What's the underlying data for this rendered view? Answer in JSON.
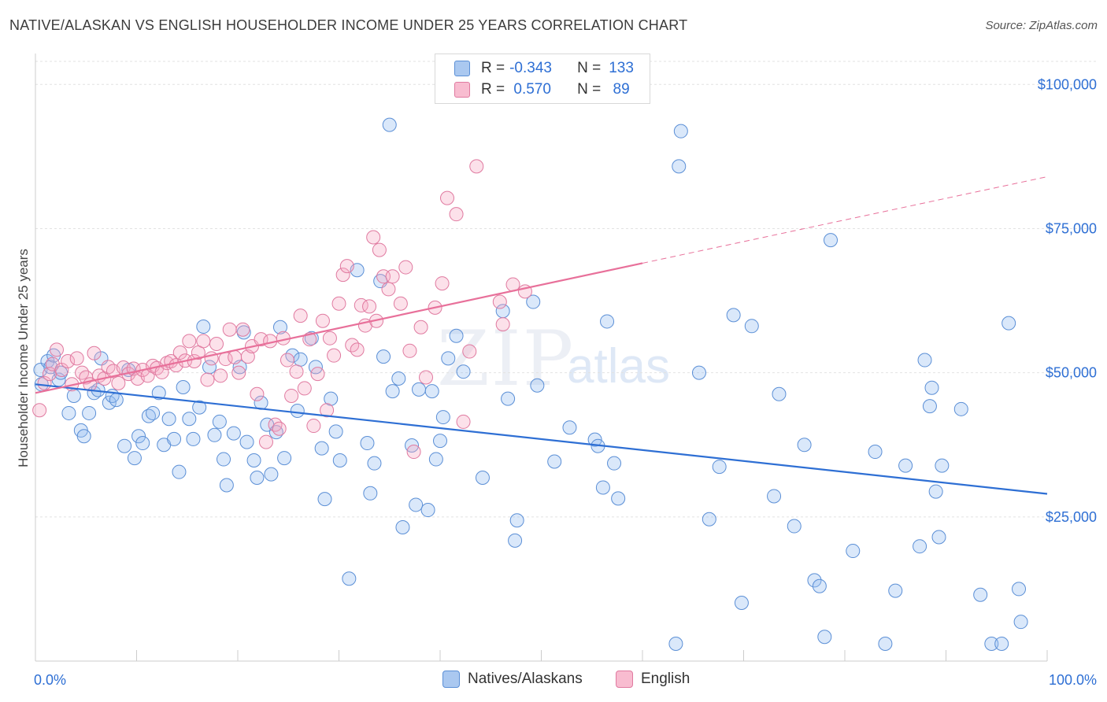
{
  "header": {
    "title": "NATIVE/ALASKAN VS ENGLISH HOUSEHOLDER INCOME UNDER 25 YEARS CORRELATION CHART",
    "source": "Source: ZipAtlas.com"
  },
  "watermark": {
    "zip": "ZIP",
    "atlas": "atlas"
  },
  "legend": {
    "rows": [
      {
        "r_label": "R =",
        "r_value": "-0.343",
        "n_label": "N =",
        "n_value": "133",
        "color": "#aac8f0",
        "border": "#5b8fd6"
      },
      {
        "r_label": "R =",
        "r_value": " 0.570",
        "n_label": "N =",
        "n_value": " 89",
        "color": "#f8bcd0",
        "border": "#e07aa0"
      }
    ]
  },
  "bottom_legend": {
    "series1": "Natives/Alaskans",
    "series2": "English"
  },
  "chart_data": {
    "type": "scatter",
    "title": "NATIVE/ALASKAN VS ENGLISH HOUSEHOLDER INCOME UNDER 25 YEARS CORRELATION CHART",
    "xlabel": "",
    "ylabel": "Householder Income Under 25 years",
    "xlim": [
      0,
      100
    ],
    "ylim": [
      0,
      104000
    ],
    "x_tick_labels": [
      "0.0%",
      "100.0%"
    ],
    "y_ticks": [
      25000,
      50000,
      75000,
      100000
    ],
    "y_tick_labels": [
      "$25,000",
      "$50,000",
      "$75,000",
      "$100,000"
    ],
    "grid": "horizontal dashed",
    "legend_position": "top-center",
    "colors": {
      "blue": "#5b8fd6",
      "blue_fill": "rgba(150,190,240,0.35)",
      "pink": "#e07aa0",
      "pink_fill": "rgba(245,170,195,0.35)",
      "blue_line": "#2e6fd4",
      "pink_line": "#e8709a",
      "axis_label": "#2e6fd4"
    },
    "series": [
      {
        "name": "Natives/Alaskans",
        "r": -0.343,
        "n": 133,
        "trend": {
          "x": [
            0,
            100
          ],
          "y": [
            48000,
            29000
          ]
        },
        "points": [
          [
            0.5,
            50500
          ],
          [
            0.6,
            48000
          ],
          [
            1.2,
            52000
          ],
          [
            1.5,
            51000
          ],
          [
            1.8,
            53000
          ],
          [
            2.3,
            48800
          ],
          [
            2.5,
            50000
          ],
          [
            3.3,
            43000
          ],
          [
            3.8,
            46000
          ],
          [
            4.5,
            40000
          ],
          [
            4.8,
            39000
          ],
          [
            5.3,
            43000
          ],
          [
            5.8,
            46500
          ],
          [
            6.2,
            47000
          ],
          [
            6.5,
            52500
          ],
          [
            7.3,
            44800
          ],
          [
            7.6,
            46000
          ],
          [
            8.0,
            45300
          ],
          [
            8.8,
            37300
          ],
          [
            9.2,
            50500
          ],
          [
            9.8,
            35200
          ],
          [
            10.2,
            39000
          ],
          [
            10.6,
            37800
          ],
          [
            11.2,
            42500
          ],
          [
            11.6,
            43000
          ],
          [
            12.2,
            46500
          ],
          [
            12.7,
            37500
          ],
          [
            13.2,
            42000
          ],
          [
            13.7,
            38500
          ],
          [
            14.2,
            32800
          ],
          [
            14.6,
            47500
          ],
          [
            15.2,
            42000
          ],
          [
            15.6,
            38500
          ],
          [
            16.2,
            44000
          ],
          [
            16.6,
            58000
          ],
          [
            17.2,
            51000
          ],
          [
            17.7,
            39200
          ],
          [
            18.2,
            41500
          ],
          [
            18.6,
            35000
          ],
          [
            18.9,
            30500
          ],
          [
            19.6,
            39500
          ],
          [
            20.2,
            51000
          ],
          [
            20.6,
            57000
          ],
          [
            20.9,
            38000
          ],
          [
            21.6,
            34800
          ],
          [
            21.9,
            31800
          ],
          [
            22.3,
            44800
          ],
          [
            22.9,
            41000
          ],
          [
            23.3,
            32400
          ],
          [
            23.8,
            39700
          ],
          [
            24.2,
            57900
          ],
          [
            24.6,
            35200
          ],
          [
            25.4,
            53000
          ],
          [
            25.9,
            43400
          ],
          [
            26.2,
            52300
          ],
          [
            27.3,
            56000
          ],
          [
            27.7,
            51000
          ],
          [
            28.3,
            36900
          ],
          [
            28.6,
            28100
          ],
          [
            29.2,
            45500
          ],
          [
            29.7,
            39800
          ],
          [
            30.1,
            34800
          ],
          [
            31.0,
            14300
          ],
          [
            31.8,
            67800
          ],
          [
            32.8,
            37800
          ],
          [
            33.5,
            34300
          ],
          [
            33.1,
            29100
          ],
          [
            34.1,
            65900
          ],
          [
            34.4,
            52800
          ],
          [
            35.0,
            93000
          ],
          [
            35.3,
            46800
          ],
          [
            35.9,
            49000
          ],
          [
            36.3,
            23200
          ],
          [
            37.2,
            37400
          ],
          [
            37.6,
            27100
          ],
          [
            37.9,
            47100
          ],
          [
            38.8,
            26200
          ],
          [
            39.2,
            46800
          ],
          [
            39.6,
            35000
          ],
          [
            40.0,
            38200
          ],
          [
            40.3,
            42300
          ],
          [
            40.8,
            52500
          ],
          [
            41.6,
            56400
          ],
          [
            42.3,
            50200
          ],
          [
            44.2,
            31800
          ],
          [
            46.2,
            60700
          ],
          [
            46.7,
            45500
          ],
          [
            47.6,
            24400
          ],
          [
            47.4,
            20900
          ],
          [
            49.2,
            62300
          ],
          [
            49.6,
            47800
          ],
          [
            51.3,
            34600
          ],
          [
            52.8,
            40500
          ],
          [
            55.3,
            38400
          ],
          [
            55.6,
            37300
          ],
          [
            56.1,
            30100
          ],
          [
            56.5,
            58900
          ],
          [
            57.2,
            34300
          ],
          [
            57.6,
            28200
          ],
          [
            63.8,
            91900
          ],
          [
            63.6,
            85800
          ],
          [
            63.3,
            3000
          ],
          [
            65.6,
            50000
          ],
          [
            66.6,
            24600
          ],
          [
            67.6,
            33700
          ],
          [
            69.0,
            60000
          ],
          [
            69.8,
            10100
          ],
          [
            70.8,
            58100
          ],
          [
            73.0,
            28600
          ],
          [
            73.5,
            46300
          ],
          [
            75.0,
            23400
          ],
          [
            76.0,
            37500
          ],
          [
            77.0,
            14000
          ],
          [
            77.5,
            13000
          ],
          [
            78.0,
            4200
          ],
          [
            78.6,
            73000
          ],
          [
            80.8,
            19100
          ],
          [
            83.0,
            36300
          ],
          [
            84.0,
            3000
          ],
          [
            85.0,
            12200
          ],
          [
            86.0,
            33900
          ],
          [
            87.4,
            19900
          ],
          [
            87.9,
            52200
          ],
          [
            88.4,
            44200
          ],
          [
            88.6,
            47400
          ],
          [
            89.0,
            29400
          ],
          [
            89.3,
            21500
          ],
          [
            89.6,
            33900
          ],
          [
            91.5,
            43700
          ],
          [
            93.4,
            11500
          ],
          [
            94.5,
            3000
          ],
          [
            95.5,
            3000
          ],
          [
            96.2,
            58600
          ],
          [
            97.2,
            12500
          ],
          [
            97.4,
            6800
          ]
        ]
      },
      {
        "name": "English",
        "r": 0.57,
        "n": 89,
        "trend": {
          "x": [
            0,
            60
          ],
          "y": [
            46500,
            69000
          ]
        },
        "points": [
          [
            0.4,
            43500
          ],
          [
            0.9,
            48200
          ],
          [
            1.4,
            49800
          ],
          [
            1.7,
            51500
          ],
          [
            2.1,
            54000
          ],
          [
            2.6,
            50500
          ],
          [
            3.2,
            52000
          ],
          [
            3.6,
            48000
          ],
          [
            4.1,
            52500
          ],
          [
            4.6,
            50000
          ],
          [
            5.0,
            49200
          ],
          [
            5.4,
            48000
          ],
          [
            5.8,
            53400
          ],
          [
            6.3,
            49500
          ],
          [
            6.8,
            49000
          ],
          [
            7.2,
            51000
          ],
          [
            7.7,
            50300
          ],
          [
            8.2,
            48200
          ],
          [
            8.7,
            50900
          ],
          [
            9.2,
            49800
          ],
          [
            9.7,
            50700
          ],
          [
            10.1,
            49000
          ],
          [
            10.6,
            50500
          ],
          [
            11.1,
            49500
          ],
          [
            11.6,
            51200
          ],
          [
            12.0,
            50800
          ],
          [
            12.5,
            50100
          ],
          [
            13.0,
            51700
          ],
          [
            13.4,
            52000
          ],
          [
            13.9,
            51300
          ],
          [
            14.3,
            53500
          ],
          [
            14.8,
            52100
          ],
          [
            15.2,
            55500
          ],
          [
            15.7,
            52000
          ],
          [
            16.1,
            53500
          ],
          [
            16.6,
            55500
          ],
          [
            17.0,
            48800
          ],
          [
            17.4,
            52500
          ],
          [
            17.9,
            55000
          ],
          [
            18.3,
            49500
          ],
          [
            18.8,
            52400
          ],
          [
            19.2,
            57500
          ],
          [
            19.7,
            52700
          ],
          [
            20.1,
            50000
          ],
          [
            20.5,
            57500
          ],
          [
            21.0,
            52800
          ],
          [
            21.4,
            54600
          ],
          [
            21.9,
            46300
          ],
          [
            22.3,
            55800
          ],
          [
            22.8,
            38000
          ],
          [
            23.2,
            55500
          ],
          [
            23.7,
            41000
          ],
          [
            24.1,
            40300
          ],
          [
            24.5,
            56000
          ],
          [
            24.9,
            52200
          ],
          [
            25.3,
            46000
          ],
          [
            25.8,
            50200
          ],
          [
            26.2,
            59900
          ],
          [
            26.6,
            47300
          ],
          [
            27.1,
            55800
          ],
          [
            27.5,
            40800
          ],
          [
            27.9,
            49800
          ],
          [
            28.4,
            59000
          ],
          [
            28.8,
            43500
          ],
          [
            29.1,
            56000
          ],
          [
            29.5,
            53000
          ],
          [
            30.0,
            62000
          ],
          [
            30.4,
            67000
          ],
          [
            30.8,
            68500
          ],
          [
            31.3,
            54800
          ],
          [
            31.8,
            54000
          ],
          [
            32.2,
            61700
          ],
          [
            32.6,
            58200
          ],
          [
            33.0,
            61500
          ],
          [
            33.4,
            73500
          ],
          [
            33.7,
            59000
          ],
          [
            34.0,
            71300
          ],
          [
            34.4,
            66700
          ],
          [
            34.9,
            64500
          ],
          [
            35.3,
            66700
          ],
          [
            36.1,
            62000
          ],
          [
            36.6,
            68300
          ],
          [
            37.0,
            53800
          ],
          [
            37.4,
            36300
          ],
          [
            38.1,
            57900
          ],
          [
            38.6,
            49200
          ],
          [
            39.5,
            61300
          ],
          [
            40.2,
            65500
          ],
          [
            40.7,
            80300
          ],
          [
            41.6,
            77500
          ],
          [
            42.3,
            41500
          ],
          [
            42.9,
            53700
          ],
          [
            43.6,
            85800
          ],
          [
            45.9,
            62300
          ],
          [
            46.2,
            58400
          ],
          [
            47.2,
            65300
          ],
          [
            48.4,
            64100
          ]
        ]
      }
    ]
  }
}
